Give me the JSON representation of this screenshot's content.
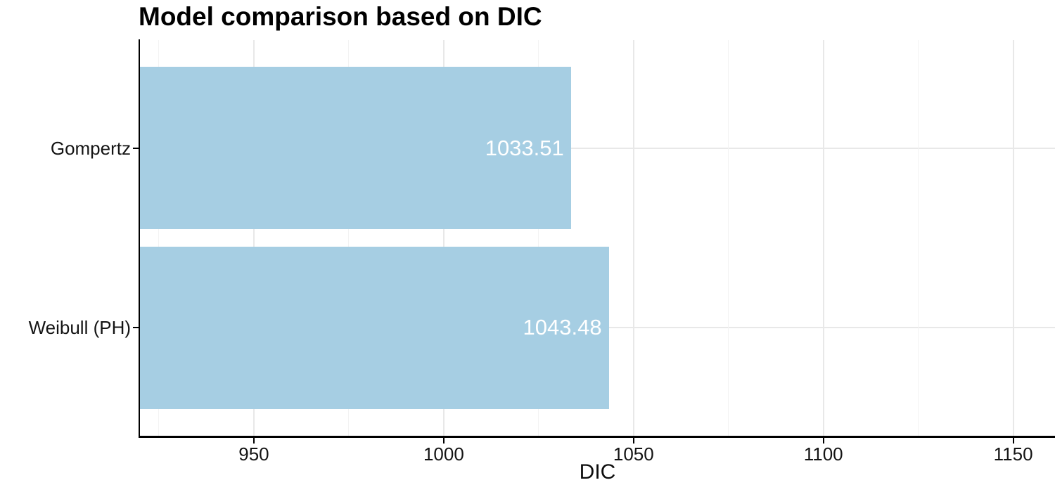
{
  "title": "Model comparison based on DIC",
  "chart_data": {
    "type": "bar",
    "orientation": "horizontal",
    "title": "Model comparison based on DIC",
    "xlabel": "DIC",
    "ylabel": "",
    "categories": [
      "Gompertz",
      "Weibull (PH)"
    ],
    "values": [
      1033.51,
      1043.48
    ],
    "value_labels": [
      "1033.51",
      "1043.48"
    ],
    "xlim": [
      920,
      1161
    ],
    "x_major_ticks": [
      950,
      1000,
      1050,
      1100,
      1150
    ],
    "x_tick_labels": [
      "950",
      "1000",
      "1050",
      "1100",
      "1150"
    ],
    "x_minor_ticks": [
      925,
      975,
      1025,
      1075,
      1125
    ],
    "bar_fill": "#a6cee3",
    "value_label_color": "#ffffff",
    "axis_color": "#000000",
    "tick_label_color": "#141414",
    "grid_major_color": "#e8e8e8",
    "grid_minor_color": "#f3f3f3",
    "background": "#ffffff",
    "grid": "vertical major+minor, horizontal at category centers",
    "legend": "none"
  }
}
